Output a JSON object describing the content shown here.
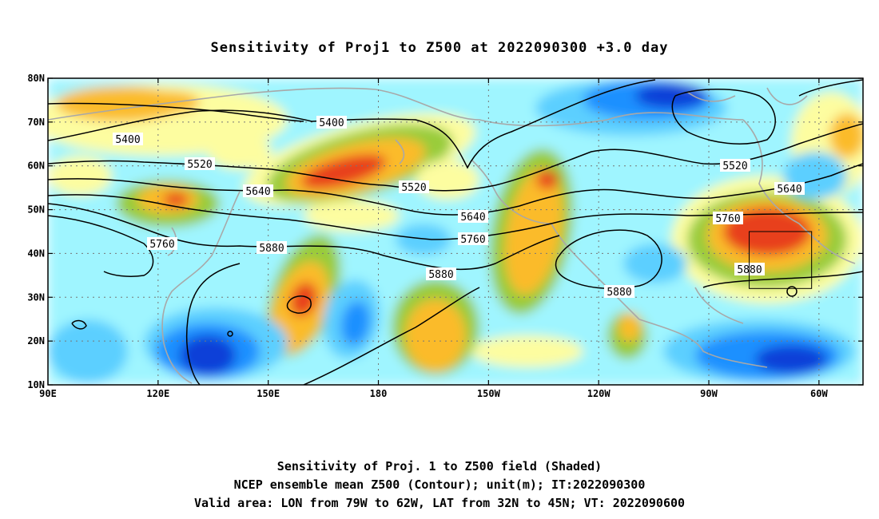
{
  "title": "Sensitivity of Proj1 to Z500 at 2022090300 +3.0 day",
  "map": {
    "lon_ticks": [
      "90E",
      "120E",
      "150E",
      "180",
      "150W",
      "120W",
      "90W",
      "60W"
    ],
    "lat_ticks": [
      "80N",
      "70N",
      "60N",
      "50N",
      "40N",
      "30N",
      "20N",
      "10N"
    ],
    "contour_labels": [
      "5400",
      "5400",
      "5520",
      "5520",
      "5520",
      "5640",
      "5640",
      "5640",
      "5760",
      "5760",
      "5760",
      "5880",
      "5880",
      "5880",
      "5880"
    ],
    "valid_box": {
      "lon_from": "79W",
      "lon_to": "62W",
      "lat_from": "32N",
      "lat_to": "45N"
    },
    "colors": {
      "strong_negative": "#0a3fd8",
      "negative": "#1e90ff",
      "weak_negative": "#5ccfff",
      "slight_negative": "#9ff5ff",
      "slight_positive": "#fdfda0",
      "weak_positive": "#99cc3a",
      "positive": "#fbbb2a",
      "strong_positive": "#e8401c",
      "coast": "#a8a8a8",
      "contour": "#000000"
    }
  },
  "caption": {
    "line1": "Sensitivity of Proj. 1 to Z500 field (Shaded)",
    "line2": "NCEP ensemble mean Z500 (Contour); unit(m); IT:2022090300",
    "line3": "Valid area: LON from 79W to 62W, LAT from 32N to 45N; VT: 2022090600"
  }
}
